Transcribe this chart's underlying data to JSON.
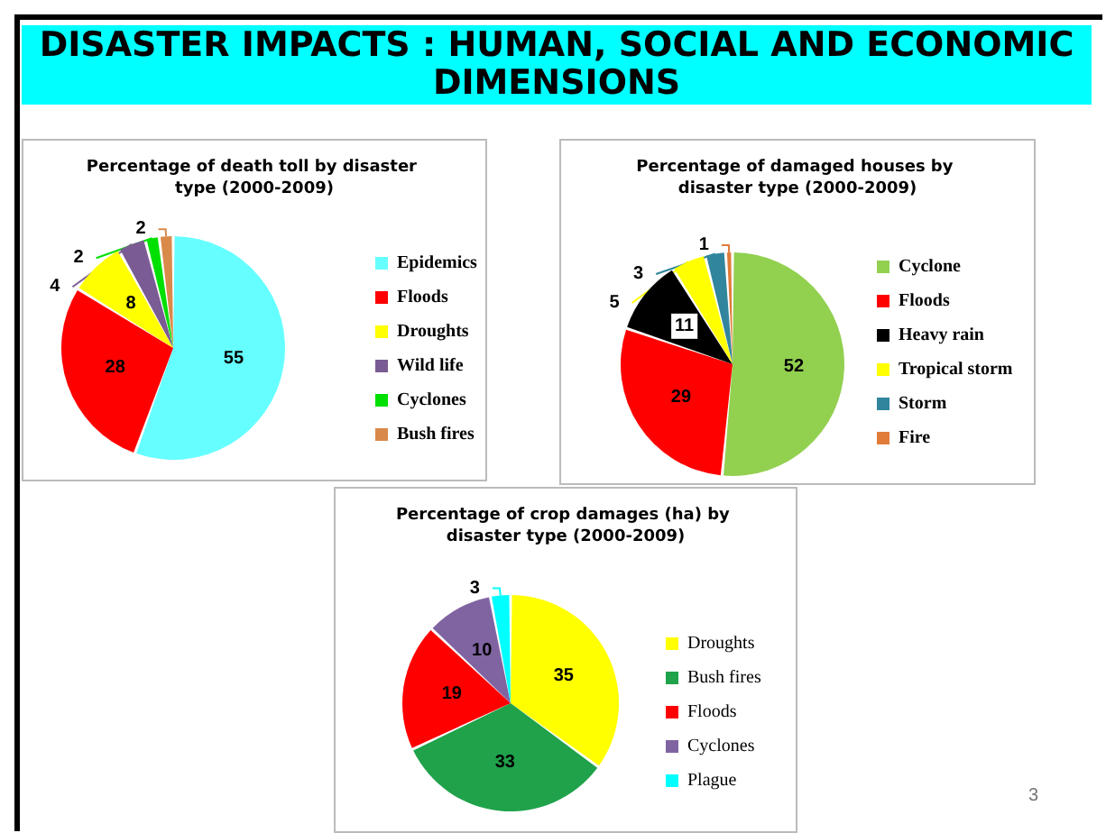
{
  "chart_data": [
    {
      "type": "pie",
      "title": "Percentage of death toll by disaster type (2000-2009)",
      "categories": [
        "Epidemics",
        "Floods",
        "Droughts",
        "Wild life",
        "Cyclones",
        "Bush fires"
      ],
      "values": [
        55,
        28,
        8,
        4,
        2,
        2
      ],
      "colors": [
        "#66ffff",
        "#ff0000",
        "#ffff00",
        "#7b5b94",
        "#00e000",
        "#d9894a"
      ],
      "data_labels": true,
      "legend": "right",
      "annotations": [
        "DISASTER IMPACTS : HUMAN, SOCIAL AND ECONOMIC DIMENSIONS"
      ]
    },
    {
      "type": "pie",
      "title": "Percentage of damaged houses by disaster type (2000-2009)",
      "categories": [
        "Cyclone",
        "Floods",
        "Heavy rain",
        "Tropical storm",
        "Storm",
        "Fire"
      ],
      "values": [
        52,
        29,
        11,
        5,
        3,
        1
      ],
      "colors": [
        "#92d050",
        "#ff0000",
        "#000000",
        "#ffff00",
        "#31859c",
        "#e07b39"
      ],
      "data_labels": true,
      "legend": "right"
    },
    {
      "type": "pie",
      "title": "Percentage of crop damages (ha) by disaster type (2000-2009)",
      "categories": [
        "Droughts",
        "Bush fires",
        "Floods",
        "Cyclones",
        "Plague"
      ],
      "values": [
        35,
        33,
        19,
        10,
        3
      ],
      "colors": [
        "#ffff00",
        "#1fa24a",
        "#ff0000",
        "#8064a2",
        "#00ffff"
      ],
      "data_labels": true,
      "legend": "right",
      "annotations": [
        "3"
      ]
    }
  ]
}
